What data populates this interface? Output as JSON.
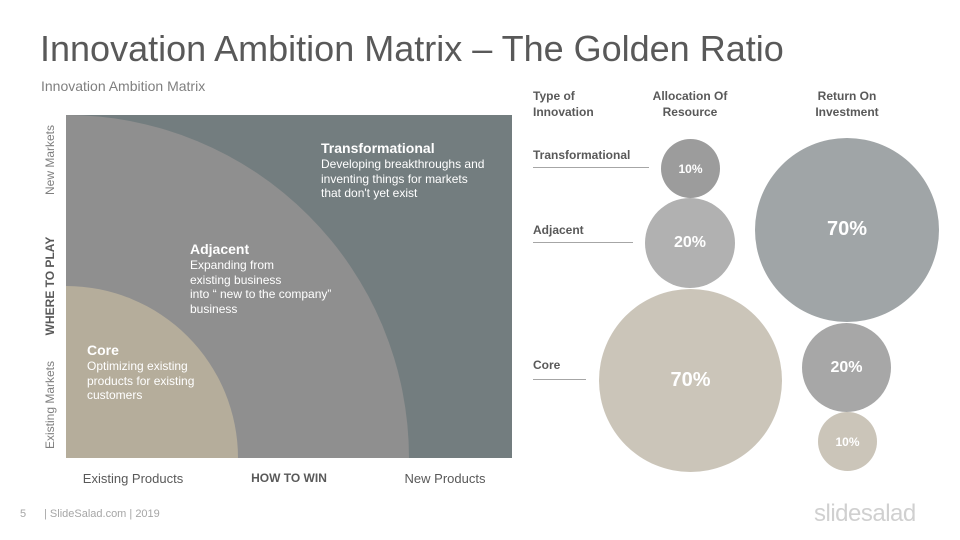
{
  "title": "Innovation Ambition Matrix – The Golden Ratio",
  "subtitle": "Innovation Ambition Matrix",
  "matrix": {
    "y_axis": {
      "top": "New Markets",
      "middle": "WHERE TO PLAY",
      "bottom": "Existing Markets"
    },
    "x_axis": {
      "left": "Existing Products",
      "middle": "HOW TO WIN",
      "right": "New Products"
    },
    "regions": {
      "transformational": {
        "title": "Transformational",
        "desc": "Developing breakthroughs and\ninventing things for markets\nthat don't yet exist",
        "color": "#737d7f"
      },
      "adjacent": {
        "title": "Adjacent",
        "desc": "Expanding from\nexisting business\ninto “ new to the company”\nbusiness",
        "color": "#8f8f8f"
      },
      "core": {
        "title": "Core",
        "desc": "Optimizing existing\nproducts for existing\ncustomers",
        "color": "#b5ad9b"
      }
    }
  },
  "table": {
    "headers": {
      "type": "Type of\nInnovation",
      "allocation": "Allocation  Of\nResource",
      "return": "Return On\nInvestment"
    },
    "rows": [
      {
        "label": "Transformational",
        "allocation": "10%",
        "return": "70%"
      },
      {
        "label": "Adjacent",
        "allocation": "20%",
        "return": "20%"
      },
      {
        "label": "Core",
        "allocation": "70%",
        "return": "10%"
      }
    ],
    "colors": {
      "allocation_small": "#9c9c9c",
      "allocation_mid": "#b1b1b1",
      "allocation_large": "#cbc5b9",
      "return_large": "#a0a5a7",
      "return_mid": "#a7a7a7",
      "return_small": "#cbc5b9"
    }
  },
  "footer": {
    "page": "5",
    "text": "| SlideSalad.com | 2019",
    "brand": "slidesalad"
  }
}
